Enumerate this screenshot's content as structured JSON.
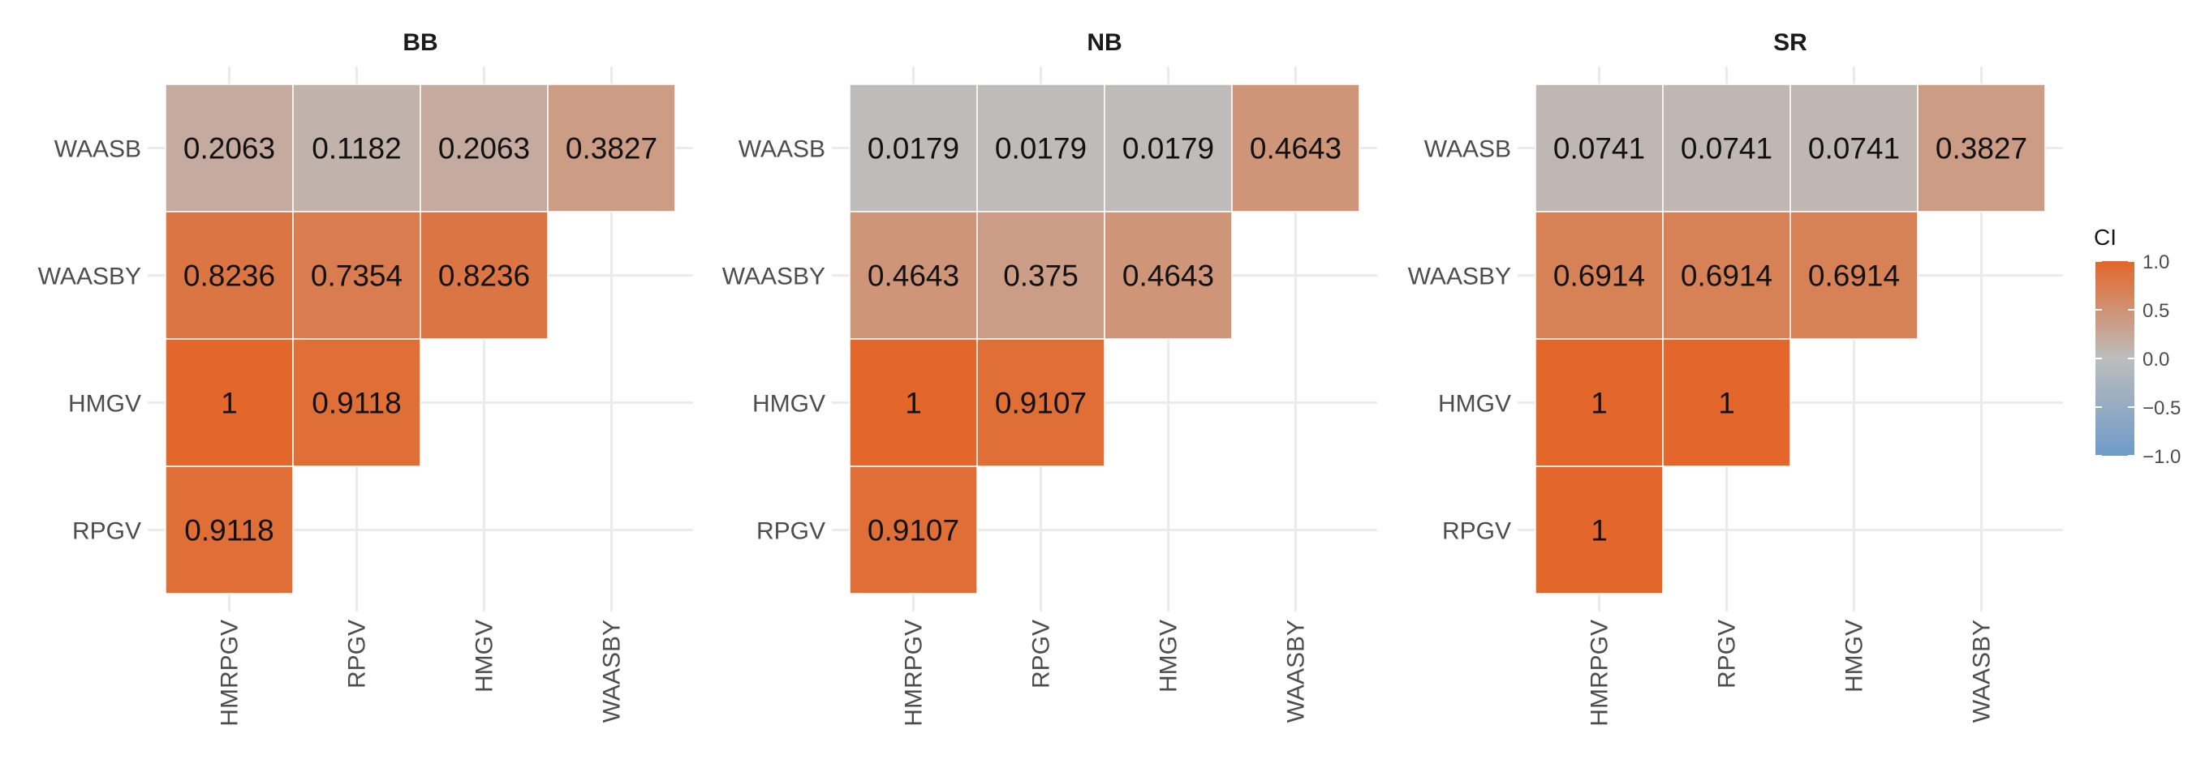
{
  "chart_data": {
    "type": "heatmap",
    "x_categories": [
      "HMRPGV",
      "RPGV",
      "HMGV",
      "WAASBY"
    ],
    "y_categories": [
      "WAASB",
      "WAASBY",
      "HMGV",
      "RPGV"
    ],
    "color_scale": {
      "low": "#6e9bc8",
      "mid": "#bdbdbd",
      "high": "#e3662a",
      "limits": [
        -1.0,
        1.0
      ]
    },
    "grid": true,
    "legend": {
      "title": "CI",
      "placement": "right",
      "tick_labels": [
        "1.0",
        "0.5",
        "0.0",
        "−0.5",
        "−1.0"
      ],
      "tick_values": [
        1.0,
        0.5,
        0.0,
        -0.5,
        -1.0
      ]
    },
    "panels": [
      {
        "title": "BB",
        "cells": [
          {
            "row": "WAASB",
            "col": "HMRPGV",
            "value": 0.2063,
            "label": "0.2063"
          },
          {
            "row": "WAASB",
            "col": "RPGV",
            "value": 0.1182,
            "label": "0.1182"
          },
          {
            "row": "WAASB",
            "col": "HMGV",
            "value": 0.2063,
            "label": "0.2063"
          },
          {
            "row": "WAASB",
            "col": "WAASBY",
            "value": 0.3827,
            "label": "0.3827"
          },
          {
            "row": "WAASBY",
            "col": "HMRPGV",
            "value": 0.8236,
            "label": "0.8236"
          },
          {
            "row": "WAASBY",
            "col": "RPGV",
            "value": 0.7354,
            "label": "0.7354"
          },
          {
            "row": "WAASBY",
            "col": "HMGV",
            "value": 0.8236,
            "label": "0.8236"
          },
          {
            "row": "HMGV",
            "col": "HMRPGV",
            "value": 1,
            "label": "1"
          },
          {
            "row": "HMGV",
            "col": "RPGV",
            "value": 0.9118,
            "label": "0.9118"
          },
          {
            "row": "RPGV",
            "col": "HMRPGV",
            "value": 0.9118,
            "label": "0.9118"
          }
        ]
      },
      {
        "title": "NB",
        "cells": [
          {
            "row": "WAASB",
            "col": "HMRPGV",
            "value": 0.0179,
            "label": "0.0179"
          },
          {
            "row": "WAASB",
            "col": "RPGV",
            "value": 0.0179,
            "label": "0.0179"
          },
          {
            "row": "WAASB",
            "col": "HMGV",
            "value": 0.0179,
            "label": "0.0179"
          },
          {
            "row": "WAASB",
            "col": "WAASBY",
            "value": 0.4643,
            "label": "0.4643"
          },
          {
            "row": "WAASBY",
            "col": "HMRPGV",
            "value": 0.4643,
            "label": "0.4643"
          },
          {
            "row": "WAASBY",
            "col": "RPGV",
            "value": 0.375,
            "label": "0.375"
          },
          {
            "row": "WAASBY",
            "col": "HMGV",
            "value": 0.4643,
            "label": "0.4643"
          },
          {
            "row": "HMGV",
            "col": "HMRPGV",
            "value": 1,
            "label": "1"
          },
          {
            "row": "HMGV",
            "col": "RPGV",
            "value": 0.9107,
            "label": "0.9107"
          },
          {
            "row": "RPGV",
            "col": "HMRPGV",
            "value": 0.9107,
            "label": "0.9107"
          }
        ]
      },
      {
        "title": "SR",
        "cells": [
          {
            "row": "WAASB",
            "col": "HMRPGV",
            "value": 0.0741,
            "label": "0.0741"
          },
          {
            "row": "WAASB",
            "col": "RPGV",
            "value": 0.0741,
            "label": "0.0741"
          },
          {
            "row": "WAASB",
            "col": "HMGV",
            "value": 0.0741,
            "label": "0.0741"
          },
          {
            "row": "WAASB",
            "col": "WAASBY",
            "value": 0.3827,
            "label": "0.3827"
          },
          {
            "row": "WAASBY",
            "col": "HMRPGV",
            "value": 0.6914,
            "label": "0.6914"
          },
          {
            "row": "WAASBY",
            "col": "RPGV",
            "value": 0.6914,
            "label": "0.6914"
          },
          {
            "row": "WAASBY",
            "col": "HMGV",
            "value": 0.6914,
            "label": "0.6914"
          },
          {
            "row": "HMGV",
            "col": "HMRPGV",
            "value": 1,
            "label": "1"
          },
          {
            "row": "HMGV",
            "col": "RPGV",
            "value": 1,
            "label": "1"
          },
          {
            "row": "RPGV",
            "col": "HMRPGV",
            "value": 1,
            "label": "1"
          }
        ]
      }
    ]
  }
}
